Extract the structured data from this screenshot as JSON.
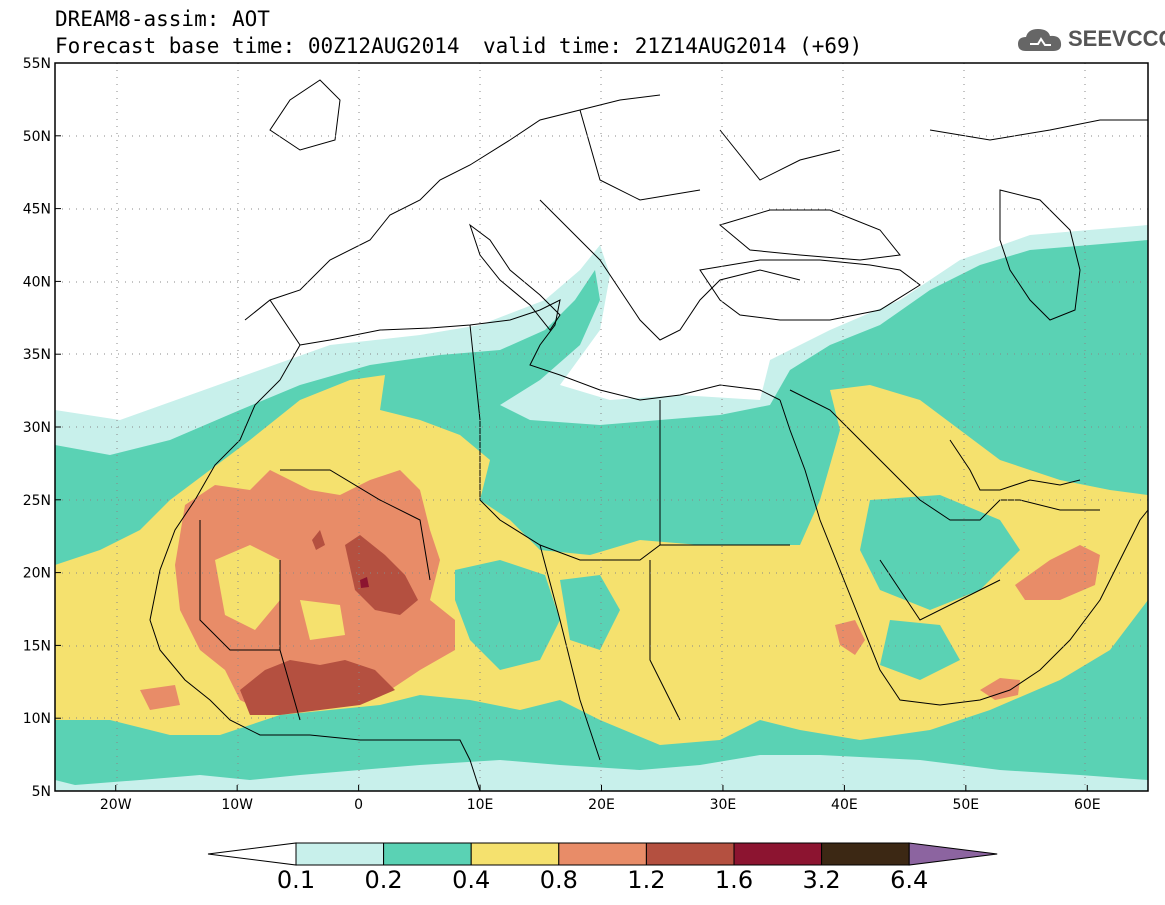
{
  "header": {
    "title": "DREAM8-assim: AOT",
    "base_time_label": "Forecast base time: 00Z12AUG2014",
    "valid_time_label": "valid time: 21Z14AUG2014 (+69)",
    "logo_text": "SEEVCCC"
  },
  "map": {
    "lon_range": [
      -25,
      65
    ],
    "lat_range": [
      5,
      55
    ],
    "lon_ticks": [
      {
        "value": -20,
        "label": "20W"
      },
      {
        "value": -10,
        "label": "10W"
      },
      {
        "value": 0,
        "label": "0"
      },
      {
        "value": 10,
        "label": "10E"
      },
      {
        "value": 20,
        "label": "20E"
      },
      {
        "value": 30,
        "label": "30E"
      },
      {
        "value": 40,
        "label": "40E"
      },
      {
        "value": 50,
        "label": "50E"
      },
      {
        "value": 60,
        "label": "60E"
      }
    ],
    "lat_ticks": [
      {
        "value": 55,
        "label": "55N"
      },
      {
        "value": 50,
        "label": "50N"
      },
      {
        "value": 45,
        "label": "45N"
      },
      {
        "value": 40,
        "label": "40N"
      },
      {
        "value": 35,
        "label": "35N"
      },
      {
        "value": 30,
        "label": "30N"
      },
      {
        "value": 25,
        "label": "25N"
      },
      {
        "value": 20,
        "label": "20N"
      },
      {
        "value": 15,
        "label": "15N"
      },
      {
        "value": 10,
        "label": "10N"
      },
      {
        "value": 5,
        "label": "5N"
      }
    ],
    "gridlines": "dotted"
  },
  "colorbar": {
    "boundaries": [
      "0.1",
      "0.2",
      "0.4",
      "0.8",
      "1.2",
      "1.6",
      "3.2",
      "6.4"
    ],
    "colors": [
      "#c8f0eb",
      "#5ad2b4",
      "#f5e16e",
      "#e88c68",
      "#b45040",
      "#8c1430",
      "#3c2814",
      "#8c64a0"
    ],
    "under_color": "#ffffff",
    "over_color": "#8c64a0"
  },
  "aot_levels_colors": {
    "l1": "#c8f0eb",
    "l2": "#5ad2b4",
    "l3": "#f5e16e",
    "l4": "#e88c68",
    "l5": "#b45040",
    "l6": "#8c1430"
  }
}
